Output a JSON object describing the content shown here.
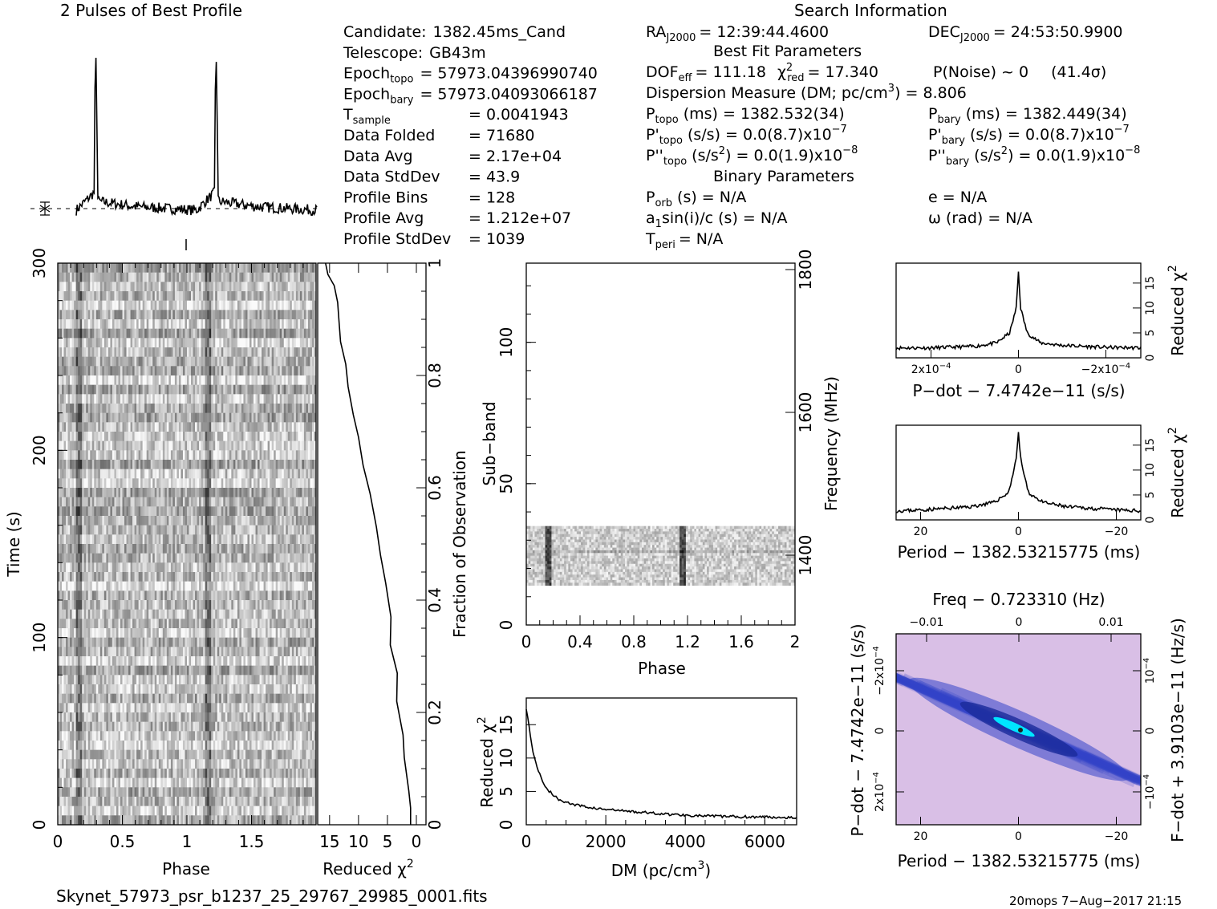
{
  "header": {
    "profile_title": "2 Pulses of Best Profile",
    "search_title": "Search Information",
    "best_fit_title": "Best Fit Parameters",
    "binary_title": "Binary Parameters"
  },
  "candidate_info": [
    {
      "label": "Candidate:",
      "value": "1382.45ms_Cand"
    },
    {
      "label": "Telescope:",
      "value": "GB43m"
    },
    {
      "label": "Epoch",
      "sub": "topo",
      "value": "= 57973.04396990740"
    },
    {
      "label": "Epoch",
      "sub": "bary",
      "value": "= 57973.04093066187"
    },
    {
      "label": "T",
      "sub": "sample",
      "value": "=  0.0041943"
    },
    {
      "label": "Data Folded",
      "value": "=  71680"
    },
    {
      "label": "Data Avg",
      "value": "=  2.17e+04"
    },
    {
      "label": "Data StdDev",
      "value": "=  43.9"
    },
    {
      "label": "Profile Bins",
      "value": "=  128"
    },
    {
      "label": "Profile Avg",
      "value": "=  1.212e+07"
    },
    {
      "label": "Profile StdDev",
      "value": "=  1039"
    }
  ],
  "search_info": {
    "ra": "RA",
    "ra_sub": "J2000",
    "ra_value": "= 12:39:44.4600",
    "dec": "DEC",
    "dec_sub": "J2000",
    "dec_value": "= 24:53:50.9900",
    "dof_line": "= 111.18",
    "chi_line": "= 17.340",
    "pnoise": "P(Noise) ~ 0",
    "sigma": "(41.4σ)",
    "dm_line": "Dispersion Measure (DM; pc/cm",
    "dm_value": ") = 8.806",
    "ptopo": "(ms) =  1382.532(34)",
    "pbary": "(ms) =  1382.449(34)",
    "pdtopo": "(s/s) = 0.0(8.7)x10",
    "pdtopo_exp": "−7",
    "pdbary": "(s/s) = 0.0(8.7)x10",
    "pdbary_exp": "−7",
    "pddtopo": "(s/s",
    "pddtopo_val": ") = 0.0(1.9)x10",
    "pddtopo_exp": "−8",
    "pddbary": "(s/s",
    "pddbary_val": ") = 0.0(1.9)x10",
    "pddbary_exp": "−8",
    "porb": "(s) = N/A",
    "e": "e = N/A",
    "a1": "sin(i)/c (s) = N/A",
    "omega": "ω (rad) = N/A",
    "tperi": "= N/A"
  },
  "footer": {
    "filename": "Skynet_57973_psr_b1237_25_29767_29985_0001.fits",
    "stamp": "20mops  7−Aug−2017 21:15"
  },
  "colors": {
    "gray_light": "#e6e6e6",
    "gray_dark": "#3a3a3a",
    "map_background": "#d9bfe6",
    "map_blue": "#3344c8",
    "map_cyan": "#00e5ff"
  },
  "chart_data": [
    {
      "type": "line",
      "title": "2 Pulses of Best Profile",
      "x": [
        0,
        0.15,
        0.16,
        0.17,
        0.18,
        0.5,
        1.0,
        1.15,
        1.16,
        1.17,
        1.18,
        1.5,
        2.0
      ],
      "y": [
        0,
        0.1,
        1.0,
        0.6,
        0.05,
        0.02,
        0.0,
        0.1,
        1.0,
        0.6,
        0.05,
        0.02,
        0.0
      ]
    },
    {
      "type": "heatmap",
      "xlabel": "Phase",
      "ylabel": "Time (s)",
      "xticks": [
        "0",
        "0.5",
        "1",
        "1.5"
      ],
      "yticks": [
        "0",
        "100",
        "200",
        "300"
      ],
      "xlim": [
        0,
        2
      ],
      "ylim": [
        0,
        300
      ],
      "pulse_phases": [
        0.16,
        1.16
      ]
    },
    {
      "type": "line",
      "xlabel": "Reduced χ",
      "ylabel": "Fraction of Observation",
      "xticks": [
        "15",
        "10",
        "5",
        "0"
      ],
      "yticks": [
        "0.2",
        "0.4",
        "0.6",
        "0.8",
        "1"
      ],
      "xlim": [
        17,
        0
      ],
      "ylim": [
        0,
        1
      ],
      "x": [
        1,
        1,
        1.3,
        2.1,
        2.3,
        3.4,
        3.3,
        4.5,
        4.4,
        5.3,
        6.2,
        6.9,
        8.0,
        9.2,
        10.0,
        10.9,
        11.8,
        12.2,
        13.1,
        13.4,
        13.6,
        14.2,
        15.3,
        15.7
      ],
      "y": [
        0,
        0.03,
        0.06,
        0.12,
        0.16,
        0.22,
        0.27,
        0.32,
        0.37,
        0.43,
        0.48,
        0.53,
        0.59,
        0.64,
        0.69,
        0.73,
        0.78,
        0.82,
        0.86,
        0.9,
        0.93,
        0.96,
        0.98,
        1.0
      ]
    },
    {
      "type": "heatmap",
      "xlabel": "Phase",
      "ylabel": "Sub−band",
      "y2label": "Frequency (MHz)",
      "xticks": [
        "0",
        "0.4",
        "0.8",
        "1.2",
        "1.6",
        "2"
      ],
      "yticks": [
        "0",
        "50",
        "100"
      ],
      "y2ticks": [
        "1400",
        "1600",
        "1800"
      ],
      "xlim": [
        0,
        2
      ],
      "ylim": [
        0,
        128
      ],
      "occupied_subbands": [
        14,
        35
      ],
      "pulse_phases": [
        0.16,
        1.16
      ]
    },
    {
      "type": "line",
      "xlabel": "DM (pc/cm",
      "ylabel": "Reduced χ",
      "xticks": [
        "0",
        "2000",
        "4000",
        "6000"
      ],
      "yticks": [
        "0",
        "5",
        "10",
        "15"
      ],
      "xlim": [
        0,
        6800
      ],
      "ylim": [
        0,
        19
      ],
      "x": [
        0,
        50,
        150,
        300,
        500,
        800,
        1200,
        1800,
        2600,
        3500,
        4500,
        5500,
        6800
      ],
      "y": [
        17.5,
        15.5,
        11.5,
        8.0,
        5.5,
        3.8,
        3.0,
        2.4,
        2.0,
        1.6,
        1.3,
        1.2,
        1.1
      ]
    },
    {
      "type": "line",
      "xlabel": "P−dot − 7.4742e−11 (s/s)",
      "ylabel": "Reduced χ",
      "xticks": [
        "2x10",
        "0",
        "−2x10"
      ],
      "yticks": [
        "0",
        "5",
        "10",
        "15"
      ],
      "xlim": [
        0.00028,
        -0.00028
      ],
      "ylim": [
        0,
        19
      ],
      "x": [
        0.00028,
        0.0002,
        0.0001,
        5e-05,
        2e-05,
        5e-06,
        0,
        -5e-06,
        -2e-05,
        -5e-05,
        -0.0001,
        -0.0002,
        -0.00028
      ],
      "y": [
        2.0,
        2.0,
        2.3,
        3.0,
        5.0,
        10.0,
        17.3,
        10.0,
        5.0,
        3.0,
        2.5,
        2.1,
        2.0
      ]
    },
    {
      "type": "line",
      "xlabel": "Period − 1382.53215775 (ms)",
      "ylabel": "Reduced χ",
      "xticks": [
        "20",
        "0",
        "−20"
      ],
      "yticks": [
        "0",
        "5",
        "10",
        "15"
      ],
      "xlim": [
        25,
        -25
      ],
      "ylim": [
        0,
        19
      ],
      "x": [
        25,
        20,
        15,
        10,
        5,
        2,
        0.5,
        0,
        -0.5,
        -2,
        -5,
        -10,
        -15,
        -20,
        -25
      ],
      "y": [
        1.8,
        2.0,
        2.3,
        2.6,
        3.5,
        5.5,
        12.0,
        17.3,
        12.0,
        5.5,
        3.5,
        2.6,
        2.3,
        2.0,
        1.8
      ]
    },
    {
      "type": "heatmap",
      "xlabel": "Period − 1382.53215775 (ms)",
      "ylabel": "P−dot − 7.4742e−11 (s/s)",
      "x2label": "Freq − 0.723310 (Hz)",
      "y2label": "F−dot + 3.9103e−11 (Hz/s)",
      "xticks": [
        "20",
        "0",
        "−20"
      ],
      "yticks": [
        "2x10",
        "0",
        "−2x10"
      ],
      "x2ticks": [
        "−0.01",
        "0",
        "0.01"
      ],
      "y2ticks": [
        "−10",
        "0",
        "10"
      ],
      "tick_exponent": "−4"
    }
  ]
}
